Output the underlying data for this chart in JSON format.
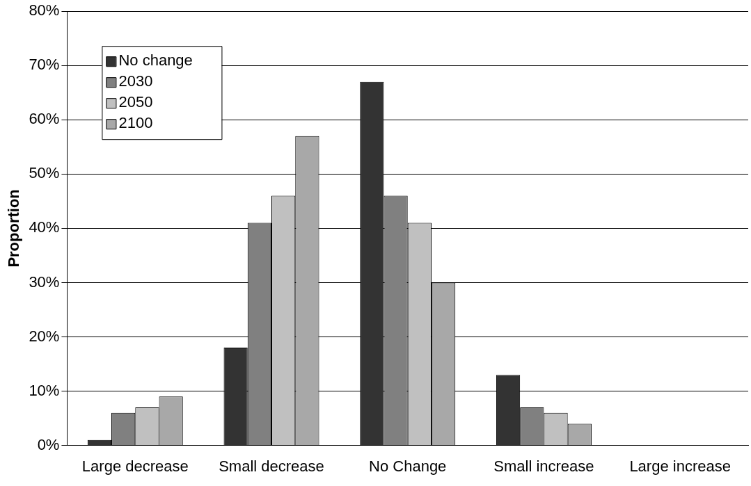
{
  "chart_data": {
    "type": "bar",
    "ylabel": "Proportion",
    "categories": [
      "Large decrease",
      "Small decrease",
      "No Change",
      "Small increase",
      "Large increase"
    ],
    "series": [
      {
        "name": "No change",
        "color": "#333333",
        "values": [
          1,
          18,
          67,
          13,
          0
        ]
      },
      {
        "name": "2030",
        "color": "#808080",
        "values": [
          6,
          41,
          46,
          7,
          0
        ]
      },
      {
        "name": "2050",
        "color": "#c0c0c0",
        "values": [
          7,
          46,
          41,
          6,
          0
        ]
      },
      {
        "name": "2100",
        "color": "#a8a8a8",
        "values": [
          9,
          57,
          30,
          4,
          0
        ]
      }
    ],
    "ylim": [
      0,
      80
    ],
    "yticks": [
      {
        "value": 0,
        "label": "0%"
      },
      {
        "value": 10,
        "label": "10%"
      },
      {
        "value": 20,
        "label": "20%"
      },
      {
        "value": 30,
        "label": "30%"
      },
      {
        "value": 40,
        "label": "40%"
      },
      {
        "value": 50,
        "label": "50%"
      },
      {
        "value": 60,
        "label": "60%"
      },
      {
        "value": 70,
        "label": "70%"
      },
      {
        "value": 80,
        "label": "80%"
      }
    ],
    "grid": "y",
    "legend": "top left"
  }
}
